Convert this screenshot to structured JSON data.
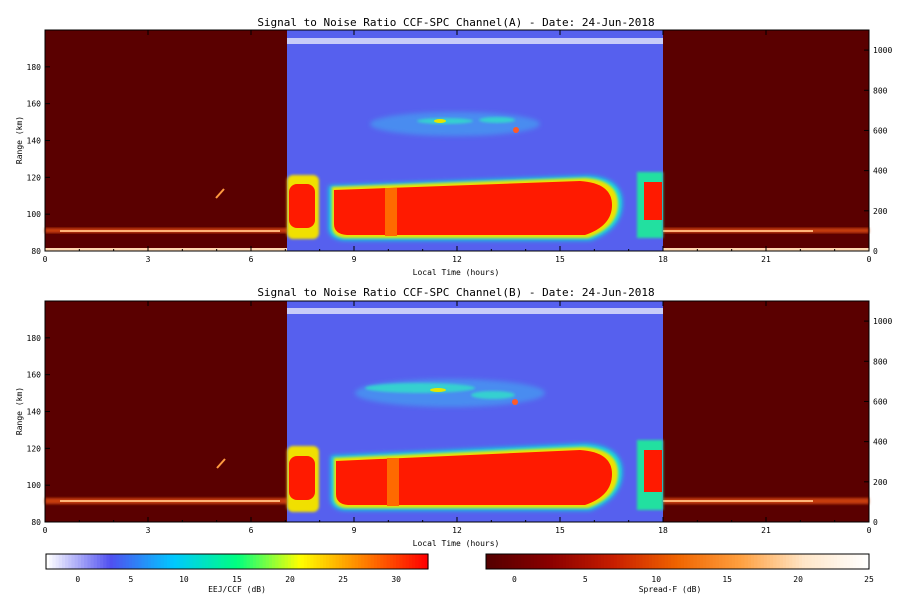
{
  "chart_data": [
    {
      "type": "heatmap",
      "title": "Signal to Noise Ratio CCF-SPC Channel(A) - Date: 24-Jun-2018",
      "xlabel": "Local Time (hours)",
      "ylabel": "Range (km)",
      "xlim": [
        0,
        24
      ],
      "ylim": [
        80,
        200
      ],
      "xticks": [
        "0",
        "3",
        "6",
        "9",
        "12",
        "15",
        "18",
        "21",
        "0"
      ],
      "yticks": [
        "80",
        "100",
        "120",
        "140",
        "160",
        "180"
      ],
      "y2lim": [
        0,
        1100
      ],
      "y2ticks": [
        "0",
        "200",
        "400",
        "600",
        "800",
        "1000"
      ],
      "day_window_hours": [
        7,
        18
      ],
      "day_colorbar": "EEJ/CCF (dB)",
      "night_colorbar": "Spread-F (dB)",
      "layers": [
        {
          "feature": "E-region echo",
          "start": 7,
          "end": 7.9,
          "range": [
            90,
            124
          ],
          "snr_db": 30
        },
        {
          "feature": "E-region echo",
          "start": 8.3,
          "end": 16.8,
          "range": [
            88,
            121
          ],
          "snr_db": 30
        },
        {
          "feature": "E-region echo",
          "start": 17.1,
          "end": 18,
          "range": [
            86,
            124
          ],
          "snr_db": 28
        },
        {
          "feature": "150 km echoes",
          "start": 10.5,
          "end": 14.3,
          "range": [
            138,
            170
          ],
          "snr_db": 15
        },
        {
          "feature": "night echo band",
          "start": 0,
          "end": 24,
          "range": [
            89,
            93
          ],
          "snr_db": 15
        }
      ]
    },
    {
      "type": "heatmap",
      "title": "Signal to Noise Ratio CCF-SPC Channel(B) - Date: 24-Jun-2018",
      "xlabel": "Local Time (hours)",
      "ylabel": "Range (km)",
      "xlim": [
        0,
        24
      ],
      "ylim": [
        80,
        200
      ],
      "xticks": [
        "0",
        "3",
        "6",
        "9",
        "12",
        "15",
        "18",
        "21",
        "0"
      ],
      "yticks": [
        "80",
        "100",
        "120",
        "140",
        "160",
        "180"
      ],
      "y2lim": [
        0,
        1100
      ],
      "y2ticks": [
        "0",
        "200",
        "400",
        "600",
        "800",
        "1000"
      ],
      "day_window_hours": [
        7,
        18
      ],
      "day_colorbar": "EEJ/CCF (dB)",
      "night_colorbar": "Spread-F (dB)",
      "layers": [
        {
          "feature": "E-region echo",
          "start": 7,
          "end": 8.1,
          "range": [
            90,
            124
          ],
          "snr_db": 30
        },
        {
          "feature": "E-region echo",
          "start": 8.4,
          "end": 16.8,
          "range": [
            88,
            122
          ],
          "snr_db": 30
        },
        {
          "feature": "E-region echo",
          "start": 17.1,
          "end": 18,
          "range": [
            86,
            128
          ],
          "snr_db": 28
        },
        {
          "feature": "150 km echoes",
          "start": 9.5,
          "end": 14.3,
          "range": [
            136,
            174
          ],
          "snr_db": 15
        },
        {
          "feature": "night echo band",
          "start": 0,
          "end": 24,
          "range": [
            89,
            93
          ],
          "snr_db": 15
        }
      ]
    },
    {
      "type": "colorbar",
      "label": "EEJ/CCF (dB)",
      "range": [
        -3,
        33
      ],
      "ticks": [
        "0",
        "5",
        "10",
        "15",
        "20",
        "25",
        "30"
      ],
      "colormap": [
        "#ffffff",
        "#5050f0",
        "#00c8ff",
        "#00ff80",
        "#ffff00",
        "#ff8000",
        "#ff0000"
      ]
    },
    {
      "type": "colorbar",
      "label": "Spread-F (dB)",
      "range": [
        -2,
        25
      ],
      "ticks": [
        "0",
        "5",
        "10",
        "15",
        "20",
        "25"
      ],
      "colormap": [
        "#550000",
        "#8b0000",
        "#c81e00",
        "#f06400",
        "#ffa040",
        "#ffe6c8",
        "#ffffff"
      ]
    }
  ]
}
